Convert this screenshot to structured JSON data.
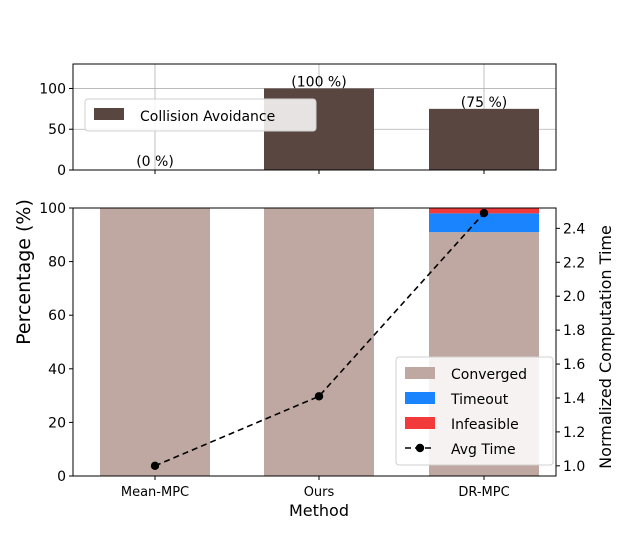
{
  "chart_data": [
    {
      "type": "bar",
      "categories": [
        "Mean-MPC",
        "Ours",
        "DR-MPC"
      ],
      "series": [
        {
          "name": "Collision Avoidance",
          "values": [
            0,
            100,
            75
          ],
          "color": "#5a4640"
        }
      ],
      "bar_labels": [
        "(0 %)",
        "(100 %)",
        "(75 %)"
      ],
      "ylim": [
        0,
        130
      ],
      "yticks": [
        "0",
        "50",
        "100"
      ],
      "ytick_values": [
        0,
        50,
        100
      ],
      "grid": true,
      "legend_position": "upper-left"
    },
    {
      "type": "bar",
      "stacked": true,
      "categories": [
        "Mean-MPC",
        "Ours",
        "DR-MPC"
      ],
      "series": [
        {
          "name": "Converged",
          "values": [
            100,
            100,
            91
          ],
          "color": "#bfa8a1"
        },
        {
          "name": "Timeout",
          "values": [
            0,
            0,
            7
          ],
          "color": "#1a84ff"
        },
        {
          "name": "Infeasible",
          "values": [
            0,
            0,
            2
          ],
          "color": "#f23a3a"
        }
      ],
      "ylabel": "Percentage (%)",
      "xlabel": "Method",
      "ylim": [
        0,
        100
      ],
      "yticks": [
        "0",
        "20",
        "40",
        "60",
        "80",
        "100"
      ],
      "ytick_values": [
        0,
        20,
        40,
        60,
        80,
        100
      ],
      "secondary_axis": {
        "label": "Normalized Computation Time",
        "ylim": [
          0.94,
          2.52
        ],
        "ticks": [
          "1.0",
          "1.2",
          "1.4",
          "1.6",
          "1.8",
          "2.0",
          "2.2",
          "2.4"
        ],
        "tick_values": [
          1.0,
          1.2,
          1.4,
          1.6,
          1.8,
          2.0,
          2.2,
          2.4
        ]
      },
      "line_series": {
        "name": "Avg Time",
        "values": [
          1.0,
          1.41,
          2.49
        ],
        "style": "dashed",
        "marker": "circle",
        "color": "#000000"
      },
      "legend_position": "lower-right"
    }
  ]
}
